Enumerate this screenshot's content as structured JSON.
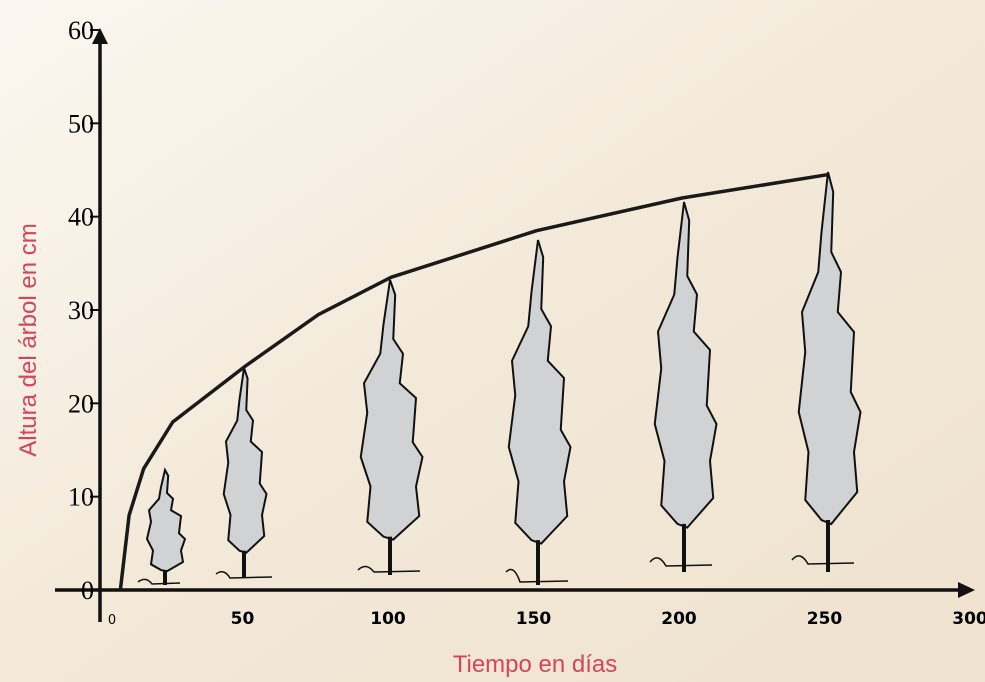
{
  "chart_data": {
    "type": "line",
    "xlabel": "Tiempo en días",
    "ylabel": "Altura del árbol en cm",
    "x": [
      7,
      10,
      15,
      25,
      50,
      75,
      100,
      150,
      200,
      250
    ],
    "series": [
      {
        "color": "#1a1a1a",
        "values": [
          0,
          8,
          13,
          18,
          24,
          29.5,
          33.5,
          38.5,
          42,
          44.5
        ]
      }
    ],
    "xlim": [
      0,
      300
    ],
    "xticks": [
      0,
      50,
      100,
      150,
      200,
      250,
      300
    ],
    "ylim": [
      0,
      60
    ],
    "yticks": [
      0,
      10,
      20,
      30,
      40,
      50,
      60
    ]
  }
}
